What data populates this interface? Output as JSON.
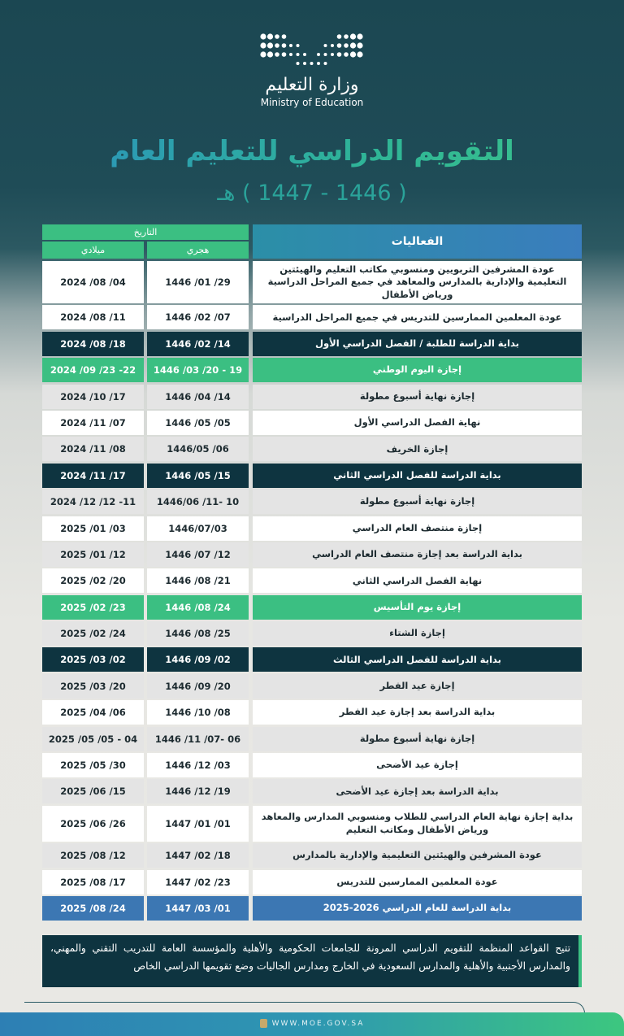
{
  "logo": {
    "ar": "وزارة التعليم",
    "en": "Ministry of Education"
  },
  "title": "التقويم الدراسي للتعليم العام",
  "subtitle": "( 1446 - 1447 ) هـ",
  "header": {
    "events": "الفعاليات",
    "date": "التاريخ",
    "hijri": "هجري",
    "gregorian": "ميلادي"
  },
  "colors": {
    "dark": "#0e3440",
    "green": "#3bbf82",
    "blue": "#3c77b3",
    "light": "#e4e4e4"
  },
  "rows": [
    {
      "kind": "w",
      "size": "tall",
      "event": "عودة المشرفين التربويين ومنسوبي مكاتب التعليم والهيئتين التعليمية والإدارية بالمدارس والمعاهد في جميع المراحل الدراسية ورياض الأطفال",
      "hijri": "1446 /01 /29",
      "gregorian": "2024 /08 /04"
    },
    {
      "kind": "w",
      "event": "عودة المعلمين الممارسين للتدريس في جميع المراحل الدراسية",
      "hijri": "1446 /02 /07",
      "gregorian": "2024 /08 /11"
    },
    {
      "kind": "d",
      "event": "بداية الدراسة للطلبة / الفصل الدراسي الأول",
      "hijri": "1446 /02 /14",
      "gregorian": "2024 /08 /18"
    },
    {
      "kind": "gr",
      "event": "إجازة اليوم الوطني",
      "hijri": "1446 /03 /20 - 19",
      "gregorian": "2024 /09 /23 -22"
    },
    {
      "kind": "l",
      "event": "إجازة نهاية أسبوع مطولة",
      "hijri": "1446 /04 /14",
      "gregorian": "2024 /10 /17"
    },
    {
      "kind": "w",
      "event": "نهاية الفصل الدراسي الأول",
      "hijri": "1446 /05 /05",
      "gregorian": "2024 /11 /07"
    },
    {
      "kind": "l",
      "event": "إجازة الخريف",
      "hijri": "1446/05 /06",
      "gregorian": "2024 /11 /08"
    },
    {
      "kind": "d",
      "event": "بداية الدراسة للفصل الدراسي الثاني",
      "hijri": "1446 /05 /15",
      "gregorian": "2024 /11 /17"
    },
    {
      "kind": "l",
      "event": "إجازة نهاية أسبوع مطولة",
      "hijri": "1446/06 /11- 10",
      "gregorian": "2024 /12 /12 -11"
    },
    {
      "kind": "w",
      "event": "إجازة منتصف العام الدراسي",
      "hijri": "1446/07/03",
      "gregorian": "2025 /01 /03"
    },
    {
      "kind": "l",
      "event": "بداية الدراسة بعد إجازة منتصف العام الدراسي",
      "hijri": "1446 /07 /12",
      "gregorian": "2025 /01 /12"
    },
    {
      "kind": "w",
      "event": "نهاية الفصل الدراسي الثاني",
      "hijri": "1446 /08 /21",
      "gregorian": "2025 /02 /20"
    },
    {
      "kind": "gr",
      "event": "إجازة يوم التأسيس",
      "hijri": "1446 /08 /24",
      "gregorian": "2025 /02 /23"
    },
    {
      "kind": "l",
      "event": "إجازة الشتاء",
      "hijri": "1446 /08 /25",
      "gregorian": "2025 /02 /24"
    },
    {
      "kind": "d",
      "event": "بداية الدراسة للفصل الدراسي الثالث",
      "hijri": "1446 /09 /02",
      "gregorian": "2025 /03 /02"
    },
    {
      "kind": "l",
      "event": "إجازة عيد الفطر",
      "hijri": "1446 /09 /20",
      "gregorian": "2025 /03 /20"
    },
    {
      "kind": "w",
      "event": "بداية الدراسة بعد إجازة عيد الفطر",
      "hijri": "1446 /10 /08",
      "gregorian": "2025 /04 /06"
    },
    {
      "kind": "l",
      "event": "إجازة نهاية أسبوع مطولة",
      "hijri": "1446 /11 /07- 06",
      "gregorian": "2025 /05 /05 - 04"
    },
    {
      "kind": "w",
      "event": "إجازة عيد الأضحى",
      "hijri": "1446 /12 /03",
      "gregorian": "2025 /05 /30"
    },
    {
      "kind": "l",
      "event": "بداية الدراسة بعد إجازة عيد الأضحى",
      "hijri": "1446 /12 /19",
      "gregorian": "2025 /06 /15"
    },
    {
      "kind": "w",
      "size": "tall2",
      "event": "بداية إجازة نهاية العام الدراسي للطلاب ومنسوبي المدارس والمعاهد ورياض الأطفال ومكاتب التعليم",
      "hijri": "1447 /01 /01",
      "gregorian": "2025 /06 /26"
    },
    {
      "kind": "l",
      "event": "عودة المشرفين والهيئتين التعليمية والإدارية بالمدارس",
      "hijri": "1447 /02 /18",
      "gregorian": "2025 /08 /12"
    },
    {
      "kind": "w",
      "event": "عودة المعلمين الممارسين للتدريس",
      "hijri": "1447 /02 /23",
      "gregorian": "2025 /08 /17"
    },
    {
      "kind": "b",
      "event": "بداية الدراسة للعام الدراسي 2026-2025",
      "hijri": "1447 /03 /01",
      "gregorian": "2025 /08 /24"
    }
  ],
  "note": "تتيح القواعد المنظمة للتقويم الدراسي المرونة للجامعات الحكومية والأهلية والمؤسسة العامة للتدريب التقني والمهني، والمدارس الأجنبية والأهلية والمدارس السعودية في الخارج ومدارس الجاليات وضع تقويمها الدراسي الخاص",
  "footer": {
    "url": "WWW.MOE.GOV.SA",
    "icon": "globe-icon"
  }
}
